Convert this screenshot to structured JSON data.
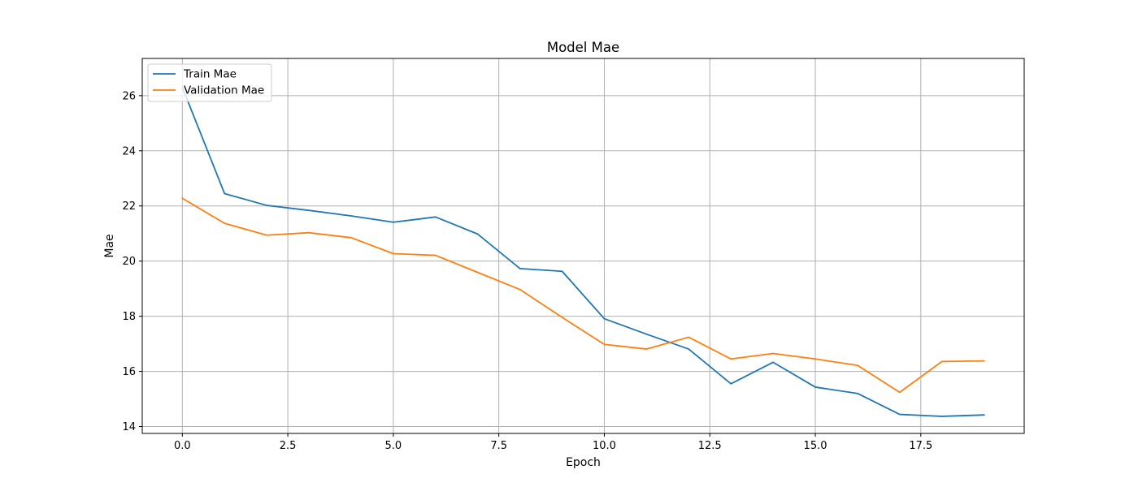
{
  "chart_data": {
    "type": "line",
    "title": "Model Mae",
    "xlabel": "Epoch",
    "ylabel": "Mae",
    "xlim": [
      -0.95,
      19.95
    ],
    "ylim": [
      13.75,
      27.35
    ],
    "xticks": [
      0.0,
      2.5,
      5.0,
      7.5,
      10.0,
      12.5,
      15.0,
      17.5
    ],
    "xtick_labels": [
      "0.0",
      "2.5",
      "5.0",
      "7.5",
      "10.0",
      "12.5",
      "15.0",
      "17.5"
    ],
    "yticks": [
      14,
      16,
      18,
      20,
      22,
      24,
      26
    ],
    "ytick_labels": [
      "14",
      "16",
      "18",
      "20",
      "22",
      "24",
      "26"
    ],
    "grid": true,
    "legend_position": "upper-left",
    "x": [
      0,
      1,
      2,
      3,
      4,
      5,
      6,
      7,
      8,
      9,
      10,
      11,
      12,
      13,
      14,
      15,
      16,
      17,
      18,
      19
    ],
    "series": [
      {
        "name": "Train Mae",
        "color": "#1f77b4",
        "values": [
          26.3,
          22.45,
          22.02,
          21.84,
          21.64,
          21.41,
          21.6,
          20.98,
          19.73,
          19.63,
          17.91,
          17.35,
          16.81,
          15.55,
          16.33,
          15.43,
          15.2,
          14.44,
          14.37,
          14.42
        ]
      },
      {
        "name": "Validation Mae",
        "color": "#ff7f0e",
        "values": [
          22.28,
          21.37,
          20.94,
          21.03,
          20.85,
          20.27,
          20.21,
          19.59,
          18.97,
          17.96,
          16.98,
          16.81,
          17.24,
          16.45,
          16.65,
          16.45,
          16.22,
          15.24,
          16.36,
          16.38
        ]
      }
    ]
  }
}
